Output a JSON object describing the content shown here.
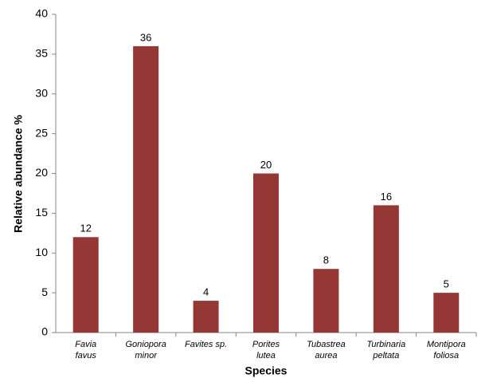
{
  "chart_data": {
    "type": "bar",
    "x_label": "Species",
    "y_label": "Relative abundance %",
    "categories": [
      [
        "Favia",
        "favus"
      ],
      [
        "Goniopora",
        "minor"
      ],
      [
        "Favites sp."
      ],
      [
        "Porites",
        "lutea"
      ],
      [
        "Tubastrea",
        "aurea"
      ],
      [
        "Turbinaria",
        "peltata"
      ],
      [
        "Montipora",
        "foliosa"
      ]
    ],
    "values": [
      12,
      36,
      4,
      20,
      8,
      16,
      5
    ],
    "color": "#953735",
    "ylim": [
      0,
      40
    ],
    "yticks": [
      0,
      5,
      10,
      15,
      20,
      25,
      30,
      35,
      40
    ],
    "grid": false
  }
}
